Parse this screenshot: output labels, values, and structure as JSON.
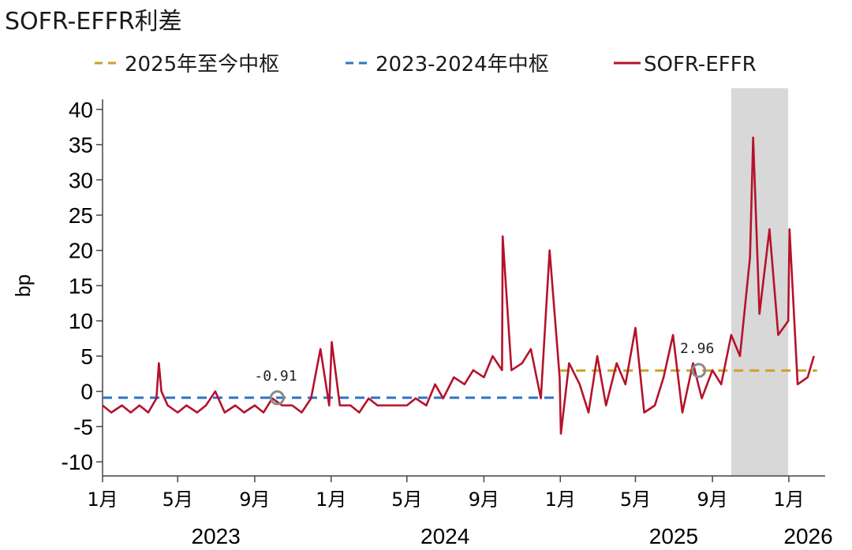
{
  "chart_data": {
    "type": "line",
    "title": "SOFR-EFFR利差",
    "ylabel": "bp",
    "ylim": [
      -12,
      43
    ],
    "yticks": [
      -10,
      -5,
      0,
      5,
      10,
      15,
      20,
      25,
      30,
      35,
      40
    ],
    "xrange": [
      "2023-01-01",
      "2026-02-28"
    ],
    "month_ticks": [
      {
        "date": "2023-01-01",
        "label": "1月"
      },
      {
        "date": "2023-05-01",
        "label": "5月"
      },
      {
        "date": "2023-09-01",
        "label": "9月"
      },
      {
        "date": "2024-01-01",
        "label": "1月"
      },
      {
        "date": "2024-05-01",
        "label": "5月"
      },
      {
        "date": "2024-09-01",
        "label": "9月"
      },
      {
        "date": "2025-01-01",
        "label": "1月"
      },
      {
        "date": "2025-05-01",
        "label": "5月"
      },
      {
        "date": "2025-09-01",
        "label": "9月"
      },
      {
        "date": "2026-01-01",
        "label": "1月"
      }
    ],
    "year_labels": [
      {
        "label": "2023",
        "date": "2023-07-01"
      },
      {
        "label": "2024",
        "date": "2024-07-01"
      },
      {
        "label": "2025",
        "date": "2025-07-01"
      },
      {
        "label": "2026",
        "date": "2026-02-01"
      }
    ],
    "shaded_region": {
      "start": "2025-10-01",
      "end": "2025-12-31",
      "color": "#d8d8d8"
    },
    "legend": [
      "2025年至今中枢",
      "2023-2024年中枢",
      "SOFR-EFFR"
    ],
    "series": [
      {
        "name": "2025年至今中枢",
        "style": "dashed",
        "color": "#c9a227",
        "value": 2.96,
        "x": [
          "2025-01-01",
          "2026-02-15"
        ],
        "y": [
          2.96,
          2.96
        ]
      },
      {
        "name": "2023-2024年中枢",
        "style": "dashed",
        "color": "#2e75c8",
        "value": -0.91,
        "x": [
          "2023-01-01",
          "2024-12-31"
        ],
        "y": [
          -0.91,
          -0.91
        ]
      },
      {
        "name": "SOFR-EFFR",
        "style": "solid",
        "color": "#b5122b",
        "x": [
          "2023-01-01",
          "2023-01-15",
          "2023-02-01",
          "2023-02-15",
          "2023-03-01",
          "2023-03-15",
          "2023-03-28",
          "2023-04-01",
          "2023-04-05",
          "2023-04-15",
          "2023-05-01",
          "2023-05-15",
          "2023-06-01",
          "2023-06-15",
          "2023-06-30",
          "2023-07-15",
          "2023-08-01",
          "2023-08-15",
          "2023-09-01",
          "2023-09-15",
          "2023-09-29",
          "2023-10-15",
          "2023-10-31",
          "2023-11-15",
          "2023-11-30",
          "2023-12-15",
          "2023-12-29",
          "2024-01-02",
          "2024-01-15",
          "2024-02-01",
          "2024-02-15",
          "2024-03-01",
          "2024-03-15",
          "2024-04-01",
          "2024-04-15",
          "2024-05-01",
          "2024-05-15",
          "2024-06-01",
          "2024-06-15",
          "2024-06-28",
          "2024-07-15",
          "2024-08-01",
          "2024-08-15",
          "2024-09-01",
          "2024-09-15",
          "2024-09-30",
          "2024-10-01",
          "2024-10-15",
          "2024-11-01",
          "2024-11-15",
          "2024-12-01",
          "2024-12-15",
          "2024-12-31",
          "2025-01-02",
          "2025-01-15",
          "2025-02-01",
          "2025-02-15",
          "2025-03-01",
          "2025-03-15",
          "2025-04-01",
          "2025-04-15",
          "2025-05-01",
          "2025-05-15",
          "2025-06-01",
          "2025-06-15",
          "2025-06-30",
          "2025-07-15",
          "2025-08-01",
          "2025-08-15",
          "2025-09-01",
          "2025-09-15",
          "2025-10-01",
          "2025-10-15",
          "2025-10-31",
          "2025-11-05",
          "2025-11-15",
          "2025-12-01",
          "2025-12-15",
          "2025-12-31",
          "2026-01-02",
          "2026-01-15",
          "2026-01-31",
          "2026-02-10"
        ],
        "y": [
          -2,
          -3,
          -2,
          -3,
          -2,
          -3,
          -1,
          4,
          0,
          -2,
          -3,
          -2,
          -3,
          -2,
          0,
          -3,
          -2,
          -3,
          -2,
          -3,
          -1,
          -2,
          -2,
          -3,
          -1,
          6,
          -2,
          7,
          -2,
          -2,
          -3,
          -1,
          -2,
          -2,
          -2,
          -2,
          -1,
          -2,
          1,
          -1,
          2,
          1,
          3,
          2,
          5,
          3,
          22,
          3,
          4,
          6,
          -1,
          20,
          2,
          -6,
          4,
          1,
          -3,
          5,
          -2,
          4,
          1,
          9,
          -3,
          -2,
          2,
          8,
          -3,
          4,
          -1,
          3,
          1,
          8,
          5,
          19,
          36,
          11,
          23,
          8,
          10,
          23,
          1,
          2,
          5
        ]
      }
    ],
    "annotations": [
      {
        "label": "-0.91",
        "x": "2023-10-07",
        "y": -0.91
      },
      {
        "label": "2.96",
        "x": "2025-08-10",
        "y": 2.96
      }
    ]
  }
}
